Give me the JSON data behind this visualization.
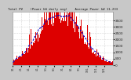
{
  "title": "Total PV    (Power kW daily avg)    Average Power kW 11.233",
  "fig_bg": "#c8c8c8",
  "plot_bg": "#ffffff",
  "grid_color": "#aaaaaa",
  "bar_color": "#dd0000",
  "line_color": "#0000cc",
  "n_bars": 365,
  "peak_value": 3800,
  "ylim_max": 4200,
  "y_ticks": [
    0,
    500,
    1000,
    1500,
    2000,
    2500,
    3000,
    3500
  ],
  "month_starts": [
    0,
    31,
    59,
    90,
    120,
    151,
    181,
    212,
    243,
    273,
    304,
    334
  ],
  "month_labels": [
    "1/1",
    "2/1",
    "3/1",
    "4/1",
    "5/1",
    "6/1",
    "7/1",
    "8/1",
    "9/1",
    "10/1",
    "11/1",
    "12/1"
  ]
}
